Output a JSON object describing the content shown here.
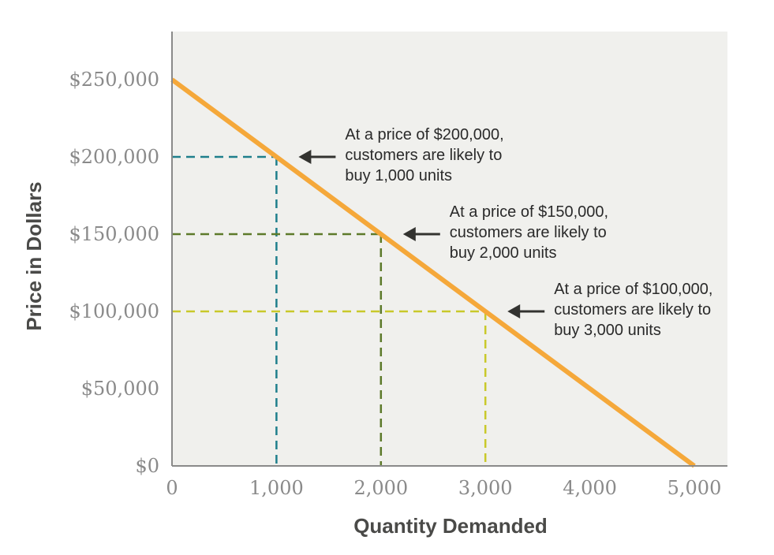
{
  "chart_data": {
    "type": "line",
    "title": "",
    "xlabel": "Quantity Demanded",
    "ylabel": "Price in Dollars",
    "xlim": [
      0,
      5000
    ],
    "ylim": [
      0,
      250000
    ],
    "x_ticks": [
      {
        "value": 0,
        "label": "0"
      },
      {
        "value": 1000,
        "label": "1,000"
      },
      {
        "value": 2000,
        "label": "2,000"
      },
      {
        "value": 3000,
        "label": "3,000"
      },
      {
        "value": 4000,
        "label": "4,000"
      },
      {
        "value": 5000,
        "label": "5,000"
      }
    ],
    "y_ticks": [
      {
        "value": 0,
        "label": "$0"
      },
      {
        "value": 50000,
        "label": "$50,000"
      },
      {
        "value": 100000,
        "label": "$100,000"
      },
      {
        "value": 150000,
        "label": "$150,000"
      },
      {
        "value": 200000,
        "label": "$200,000"
      },
      {
        "value": 250000,
        "label": "$250,000"
      }
    ],
    "grid": false,
    "series": [
      {
        "x": [
          0,
          5000
        ],
        "y": [
          250000,
          0
        ],
        "color": "#f5a83a"
      }
    ],
    "reference_points": [
      {
        "x": 1000,
        "y": 200000,
        "color": "#1f7f8c"
      },
      {
        "x": 2000,
        "y": 150000,
        "color": "#5d7a2a"
      },
      {
        "x": 3000,
        "y": 100000,
        "color": "#c9c92a"
      }
    ],
    "annotations": [
      {
        "x": 1000,
        "y": 200000,
        "lines": [
          "At a price of $200,000,",
          "customers are likely to",
          "buy 1,000 units"
        ]
      },
      {
        "x": 2000,
        "y": 150000,
        "lines": [
          "At a price of $150,000,",
          "customers are likely to",
          "buy 2,000 units"
        ]
      },
      {
        "x": 3000,
        "y": 100000,
        "lines": [
          "At a price of $100,000,",
          "customers are likely to",
          "buy 3,000 units"
        ]
      }
    ],
    "plot_background": "#f0f0ed",
    "axis_color": "#8a8a8a",
    "arrow_color": "#333330"
  }
}
